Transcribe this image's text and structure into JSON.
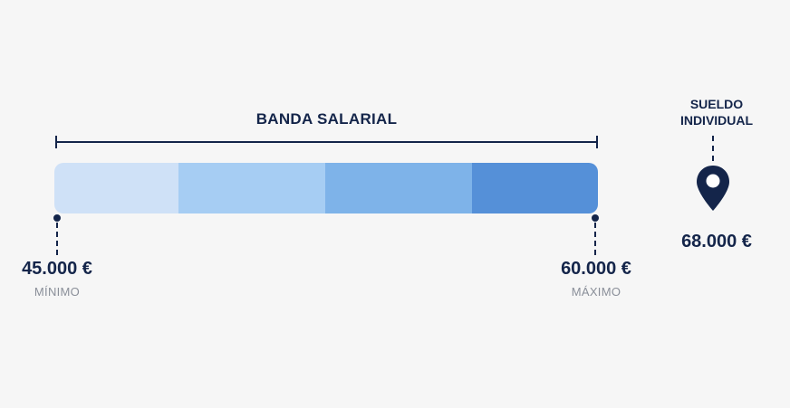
{
  "band": {
    "title": "BANDA SALARIAL",
    "segments": [
      {
        "color": "#cfe1f7"
      },
      {
        "color": "#a6cdf3"
      },
      {
        "color": "#7eb3e9"
      },
      {
        "color": "#5590d8"
      }
    ],
    "min": {
      "value": "45.000 €",
      "label": "MÍNIMO"
    },
    "max": {
      "value": "60.000 €",
      "label": "MÁXIMO"
    }
  },
  "individual": {
    "title_line1": "SUELDO",
    "title_line2": "INDIVIDUAL",
    "value": "68.000 €",
    "icon": "location-pin-icon"
  },
  "colors": {
    "navy": "#14254a",
    "caption": "#8a8f99",
    "background": "#f6f6f6"
  }
}
